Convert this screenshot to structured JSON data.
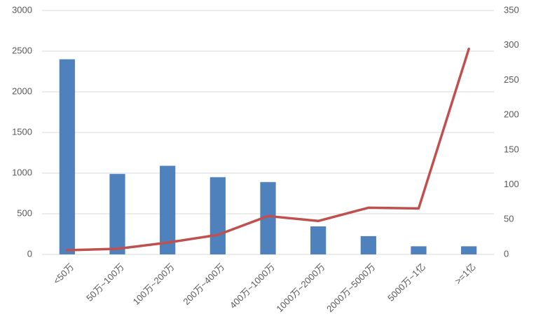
{
  "chart_data": {
    "type": "bar+line",
    "categories": [
      "<50万",
      "50万~100万",
      "100万~200万",
      "200万~400万",
      "400万~1000万",
      "1000万~2000万",
      "2000万~5000万",
      "5000万~1亿",
      ">=1亿"
    ],
    "series": [
      {
        "type": "bar",
        "color": "#4f81bd",
        "values": [
          2400,
          990,
          1090,
          950,
          890,
          345,
          225,
          100,
          100
        ]
      },
      {
        "type": "line",
        "axis": "y2",
        "color": "#c0504d",
        "values": [
          6,
          8,
          17,
          28,
          55,
          48,
          67,
          66,
          295
        ]
      }
    ],
    "ylim": [
      0,
      3000
    ],
    "yticks": [
      0,
      500,
      1000,
      1500,
      2000,
      2500,
      3000
    ],
    "y2lim": [
      0,
      350
    ],
    "y2ticks": [
      0,
      50,
      100,
      150,
      200,
      250,
      300,
      350
    ],
    "grid": true
  }
}
